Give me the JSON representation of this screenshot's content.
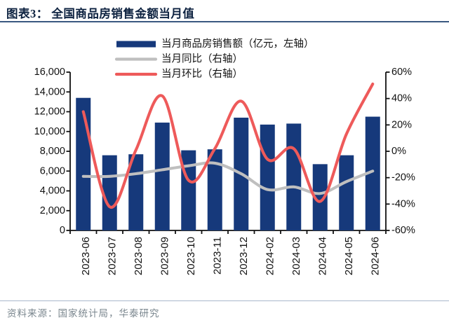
{
  "header": {
    "title": "图表3： 全国商品房销售金额当月值"
  },
  "footer": {
    "source": "资料来源：国家统计局，华泰研究"
  },
  "colors": {
    "title_text": "#0D2240",
    "title_rule": "#3A5880",
    "footer_rule": "#A8B8CC",
    "footer_text": "#7A868E"
  },
  "chart_data": {
    "type": "bar",
    "title": "全国商品房销售金额当月值",
    "categories": [
      "2023-06",
      "2023-07",
      "2023-08",
      "2023-09",
      "2023-10",
      "2023-11",
      "2023-12",
      "2024-02",
      "2024-03",
      "2024-04",
      "2024-05",
      "2024-06"
    ],
    "series": [
      {
        "name": "当月商品房销售额（亿元，左轴）",
        "type": "bar",
        "axis": "left",
        "color": "#16397B",
        "values": [
          13400,
          7600,
          7700,
          10900,
          8100,
          8200,
          11400,
          10700,
          10800,
          6700,
          7600,
          11500
        ]
      },
      {
        "name": "当月同比（右轴）",
        "type": "line",
        "axis": "right",
        "color": "#BFBFBF",
        "values": [
          -19,
          -19,
          -17,
          -14,
          -11,
          -9,
          -17,
          -29,
          -27,
          -32,
          -23,
          -15
        ]
      },
      {
        "name": "当月环比（右轴）",
        "type": "line",
        "axis": "right",
        "color": "#EE5A5A",
        "values": [
          30,
          -42,
          1,
          42,
          -22,
          2,
          38,
          -6,
          2,
          -38,
          13,
          51
        ]
      }
    ],
    "left_axis": {
      "label": "亿元",
      "min": 0,
      "max": 16000,
      "step": 2000,
      "tick_labels": [
        "0",
        "2,000",
        "4,000",
        "6,000",
        "8,000",
        "10,000",
        "12,000",
        "14,000",
        "16,000"
      ]
    },
    "right_axis": {
      "label": "%",
      "min": -60,
      "max": 60,
      "step": 20,
      "tick_labels": [
        "-60%",
        "-40%",
        "-20%",
        "0%",
        "20%",
        "40%",
        "60%"
      ]
    },
    "legend_position": "top",
    "grid": false,
    "xlabel_rotation": -90
  }
}
